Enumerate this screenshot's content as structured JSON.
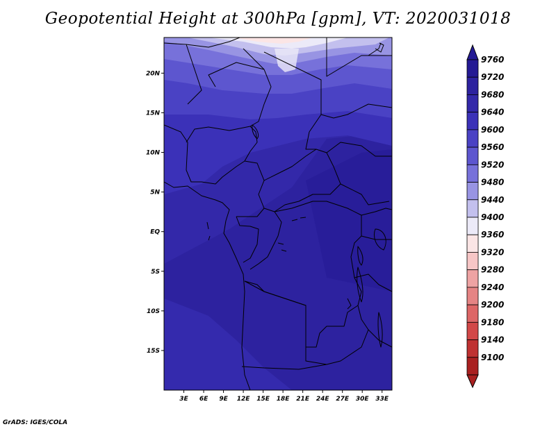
{
  "title": "Geopotential Height at 300hPa [gpm], VT: 2020031018",
  "credit": "GrADS: IGES/COLA",
  "lat_labels": [
    "20N",
    "15N",
    "10N",
    "5N",
    "EQ",
    "5S",
    "10S",
    "15S"
  ],
  "lat_values": [
    20,
    15,
    10,
    5,
    0,
    -5,
    -10,
    -15
  ],
  "lon_labels": [
    "3E",
    "6E",
    "9E",
    "12E",
    "15E",
    "18E",
    "21E",
    "24E",
    "27E",
    "30E",
    "33E"
  ],
  "lon_values": [
    3,
    6,
    9,
    12,
    15,
    18,
    21,
    24,
    27,
    30,
    33
  ],
  "map_extent": {
    "lon": [
      0,
      34.5
    ],
    "lat": [
      -20,
      24.5
    ]
  },
  "legend": {
    "labels": [
      "9760",
      "9720",
      "9680",
      "9640",
      "9600",
      "9560",
      "9520",
      "9480",
      "9440",
      "9400",
      "9360",
      "9320",
      "9280",
      "9240",
      "9200",
      "9180",
      "9140",
      "9100"
    ],
    "colors": [
      "#241a94",
      "#2d229f",
      "#3328a9",
      "#3b31b8",
      "#4a42c4",
      "#5d56cf",
      "#7771da",
      "#9894e3",
      "#c3c0ee",
      "#eceaf8",
      "#fbe5e5",
      "#f7c6c6",
      "#eea3a3",
      "#e58484",
      "#dd6666",
      "#d24848",
      "#bf3131",
      "#a92020"
    ]
  }
}
